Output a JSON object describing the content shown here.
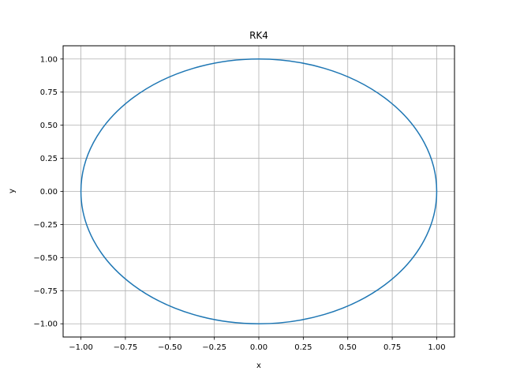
{
  "chart_data": {
    "type": "line",
    "title": "RK4",
    "xlabel": "x",
    "ylabel": "y",
    "xlim": [
      -1.1,
      1.1
    ],
    "ylim": [
      -1.1,
      1.1
    ],
    "xticks": [
      -1.0,
      -0.75,
      -0.5,
      -0.25,
      0.0,
      0.25,
      0.5,
      0.75,
      1.0
    ],
    "yticks": [
      -1.0,
      -0.75,
      -0.5,
      -0.25,
      0.0,
      0.25,
      0.5,
      0.75,
      1.0
    ],
    "xtick_labels": [
      "−1.00",
      "−0.75",
      "−0.50",
      "−0.25",
      "0.00",
      "0.25",
      "0.50",
      "0.75",
      "1.00"
    ],
    "ytick_labels": [
      "−1.00",
      "−0.75",
      "−0.50",
      "−0.25",
      "0.00",
      "0.25",
      "0.50",
      "0.75",
      "1.00"
    ],
    "grid": true,
    "series": [
      {
        "color": "#1f77b4",
        "shape": "unit circle",
        "center": [
          0.0,
          0.0
        ],
        "radius": 1.0,
        "x": [
          1.0,
          0.9239,
          0.7071,
          0.3827,
          0.0,
          -0.3827,
          -0.7071,
          -0.9239,
          -1.0,
          -0.9239,
          -0.7071,
          -0.3827,
          0.0,
          0.3827,
          0.7071,
          0.9239,
          1.0
        ],
        "y": [
          0.0,
          0.3827,
          0.7071,
          0.9239,
          1.0,
          0.9239,
          0.7071,
          0.3827,
          0.0,
          -0.3827,
          -0.7071,
          -0.9239,
          -1.0,
          -0.9239,
          -0.7071,
          -0.3827,
          0.0
        ]
      }
    ]
  }
}
